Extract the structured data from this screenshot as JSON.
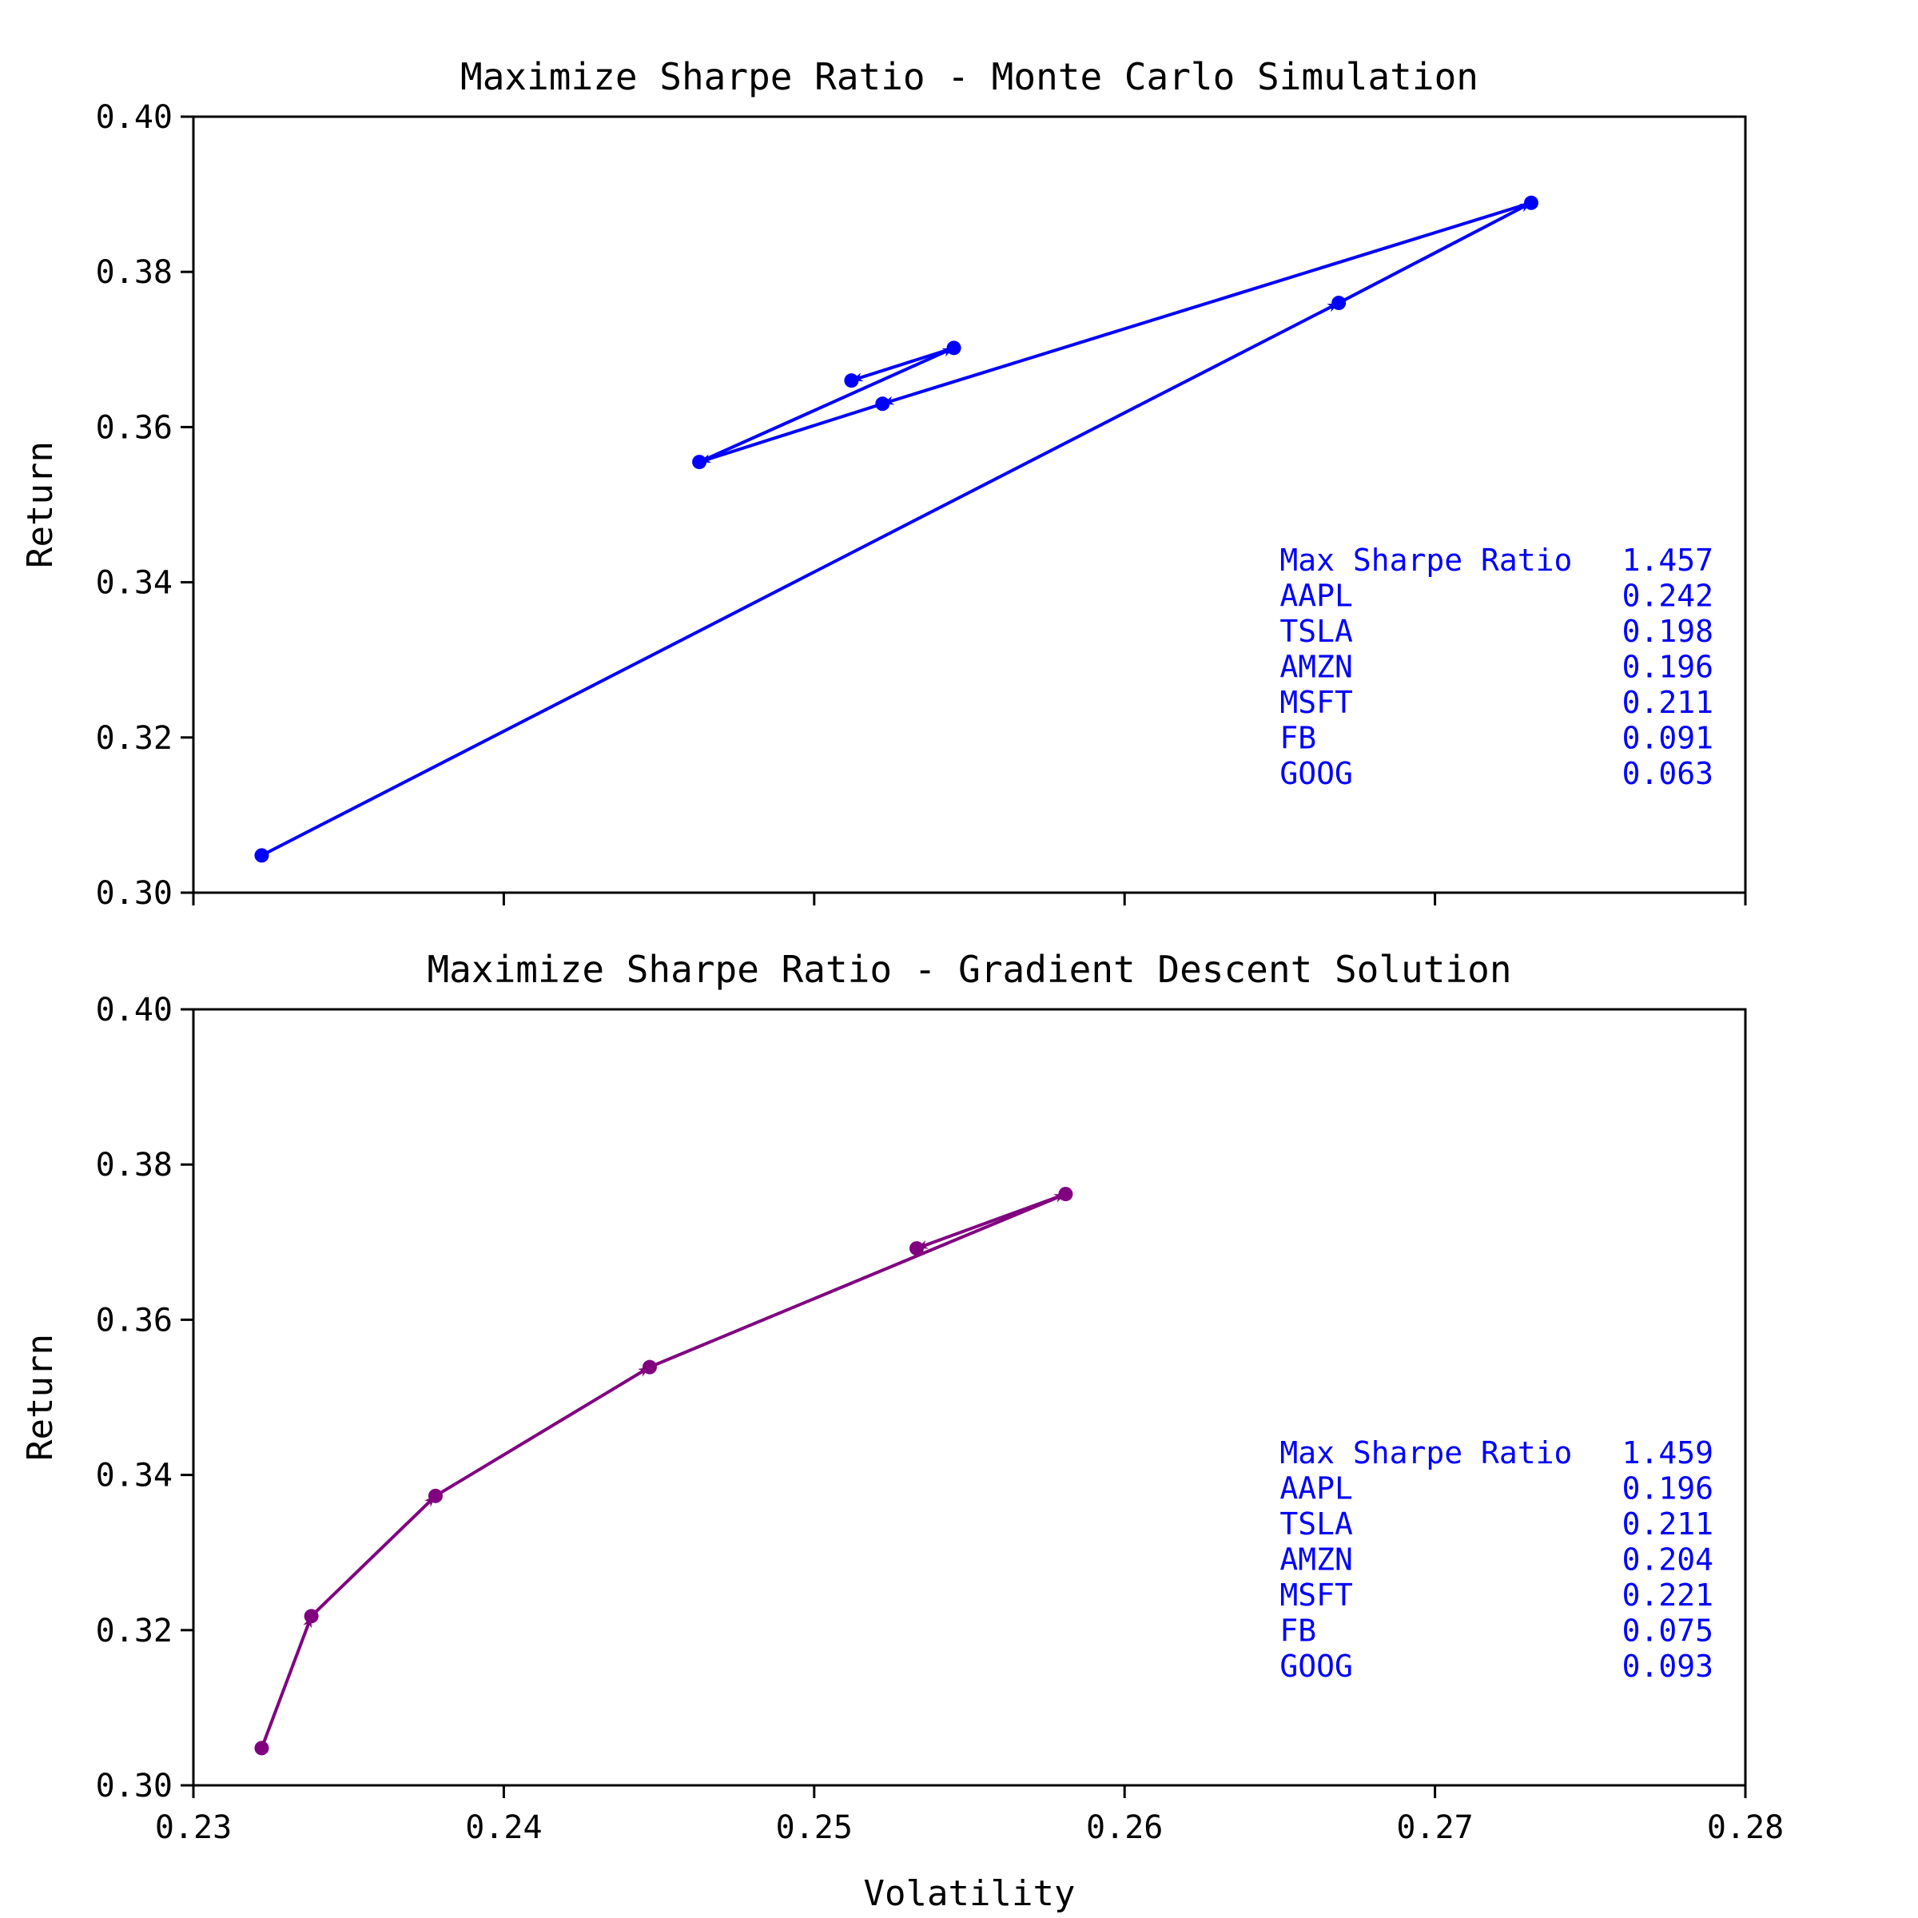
{
  "chart_data": [
    {
      "type": "line",
      "title": "Maximize Sharpe Ratio - Monte Carlo Simulation",
      "xlabel": "",
      "ylabel": "Return",
      "xlim": [
        0.23,
        0.28
      ],
      "ylim": [
        0.3,
        0.4
      ],
      "xticks": [
        0.23,
        0.24,
        0.25,
        0.26,
        0.27,
        0.28
      ],
      "xtick_labels_visible": false,
      "yticks": [
        "0.30",
        "0.32",
        "0.34",
        "0.36",
        "0.38",
        "0.40"
      ],
      "grid": false,
      "color": "#0000ff",
      "arrows": true,
      "series": [
        {
          "x": [
            0.2322,
            0.2669,
            0.2731,
            0.2522,
            0.2463,
            0.2545,
            0.2512
          ],
          "y": [
            0.3048,
            0.376,
            0.3889,
            0.363,
            0.3555,
            0.3702,
            0.366
          ]
        }
      ],
      "annotation": {
        "color": "#0000ff",
        "placement": "lower-right",
        "rows": [
          {
            "label": "Max Sharpe Ratio",
            "value": "1.457"
          },
          {
            "label": "AAPL",
            "value": "0.242"
          },
          {
            "label": "TSLA",
            "value": "0.198"
          },
          {
            "label": "AMZN",
            "value": "0.196"
          },
          {
            "label": "MSFT",
            "value": "0.211"
          },
          {
            "label": "FB",
            "value": "0.091"
          },
          {
            "label": "GOOG",
            "value": "0.063"
          }
        ]
      }
    },
    {
      "type": "line",
      "title": "Maximize Sharpe Ratio - Gradient Descent Solution",
      "xlabel": "Volatility",
      "ylabel": "Return",
      "xlim": [
        0.23,
        0.28
      ],
      "ylim": [
        0.3,
        0.4
      ],
      "xticks": [
        "0.23",
        "0.24",
        "0.25",
        "0.26",
        "0.27",
        "0.28"
      ],
      "xtick_labels_visible": true,
      "yticks": [
        "0.30",
        "0.32",
        "0.34",
        "0.36",
        "0.38",
        "0.40"
      ],
      "grid": false,
      "color": "#800080",
      "arrows": true,
      "series": [
        {
          "x": [
            0.2322,
            0.2338,
            0.2378,
            0.2447,
            0.2581,
            0.2533
          ],
          "y": [
            0.3048,
            0.3218,
            0.3373,
            0.3539,
            0.3762,
            0.3692
          ]
        }
      ],
      "annotation": {
        "color": "#0000ff",
        "placement": "lower-right",
        "rows": [
          {
            "label": "Max Sharpe Ratio",
            "value": "1.459"
          },
          {
            "label": "AAPL",
            "value": "0.196"
          },
          {
            "label": "TSLA",
            "value": "0.211"
          },
          {
            "label": "AMZN",
            "value": "0.204"
          },
          {
            "label": "MSFT",
            "value": "0.221"
          },
          {
            "label": "FB",
            "value": "0.075"
          },
          {
            "label": "GOOG",
            "value": "0.093"
          }
        ]
      }
    }
  ]
}
